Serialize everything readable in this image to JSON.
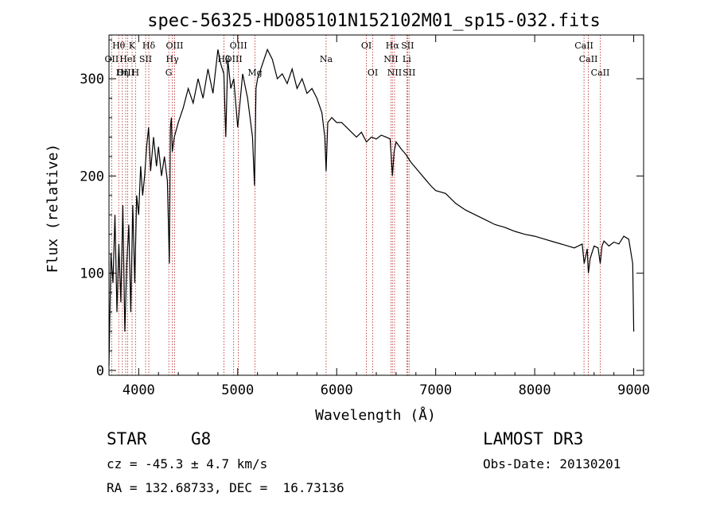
{
  "chart_data": {
    "type": "line",
    "title": "spec-56325-HD085101N152102M01_sp15-032.fits",
    "xlabel": "Wavelength (Å)",
    "ylabel": "Flux (relative)",
    "xlim": [
      3700,
      9100
    ],
    "ylim": [
      -5,
      345
    ],
    "xticks": [
      4000,
      5000,
      6000,
      7000,
      8000,
      9000
    ],
    "yticks": [
      0,
      100,
      200,
      300
    ],
    "grid": false,
    "series": [
      {
        "name": "spectrum",
        "x": [
          3700,
          3720,
          3740,
          3760,
          3780,
          3800,
          3820,
          3840,
          3860,
          3880,
          3900,
          3920,
          3940,
          3960,
          3980,
          4000,
          4020,
          4040,
          4060,
          4080,
          4100,
          4120,
          4150,
          4180,
          4200,
          4230,
          4260,
          4290,
          4310,
          4320,
          4330,
          4340,
          4360,
          4400,
          4450,
          4500,
          4550,
          4600,
          4650,
          4700,
          4750,
          4800,
          4830,
          4860,
          4880,
          4900,
          4930,
          4960,
          5000,
          5050,
          5100,
          5150,
          5170,
          5185,
          5200,
          5250,
          5300,
          5350,
          5400,
          5450,
          5500,
          5550,
          5600,
          5650,
          5700,
          5750,
          5800,
          5850,
          5880,
          5893,
          5910,
          5950,
          6000,
          6050,
          6100,
          6150,
          6200,
          6250,
          6300,
          6350,
          6400,
          6450,
          6500,
          6540,
          6563,
          6580,
          6600,
          6650,
          6700,
          6750,
          6800,
          6850,
          6900,
          6950,
          7000,
          7100,
          7200,
          7300,
          7400,
          7500,
          7600,
          7700,
          7800,
          7900,
          8000,
          8100,
          8200,
          8300,
          8400,
          8480,
          8500,
          8530,
          8542,
          8560,
          8600,
          8640,
          8662,
          8680,
          8700,
          8750,
          8800,
          8850,
          8900,
          8950,
          8990,
          9000
        ],
        "values": [
          5,
          120,
          90,
          160,
          60,
          130,
          70,
          170,
          40,
          110,
          150,
          60,
          170,
          90,
          180,
          160,
          210,
          180,
          200,
          230,
          250,
          205,
          240,
          210,
          230,
          200,
          220,
          195,
          110,
          250,
          260,
          225,
          240,
          255,
          270,
          290,
          275,
          300,
          280,
          310,
          285,
          330,
          315,
          305,
          240,
          320,
          290,
          300,
          250,
          305,
          280,
          240,
          190,
          290,
          300,
          315,
          330,
          320,
          300,
          305,
          295,
          310,
          290,
          300,
          285,
          290,
          280,
          265,
          240,
          205,
          255,
          260,
          255,
          255,
          250,
          245,
          240,
          245,
          235,
          240,
          238,
          242,
          240,
          238,
          200,
          225,
          235,
          228,
          222,
          214,
          208,
          202,
          196,
          190,
          185,
          182,
          172,
          165,
          160,
          155,
          150,
          147,
          143,
          140,
          138,
          135,
          132,
          129,
          126,
          130,
          110,
          125,
          100,
          115,
          128,
          126,
          110,
          128,
          133,
          128,
          132,
          130,
          138,
          135,
          110,
          40
        ]
      }
    ],
    "lines": [
      {
        "label": "Hθ",
        "x": 3798,
        "row": 1
      },
      {
        "label": "K",
        "x": 3933,
        "row": 1
      },
      {
        "label": "Hδ",
        "x": 4102,
        "row": 1
      },
      {
        "label": "OIII",
        "x": 4363,
        "row": 1
      },
      {
        "label": "OIII",
        "x": 5007,
        "row": 1
      },
      {
        "label": "OI",
        "x": 6300,
        "row": 1
      },
      {
        "label": "Hα",
        "x": 6563,
        "row": 1
      },
      {
        "label": "SII",
        "x": 6716,
        "row": 1
      },
      {
        "label": "CaII",
        "x": 8498,
        "row": 1
      },
      {
        "label": "OII",
        "x": 3727,
        "row": 2
      },
      {
        "label": "HeI",
        "x": 3889,
        "row": 2
      },
      {
        "label": "SII",
        "x": 4070,
        "row": 2
      },
      {
        "label": "Hγ",
        "x": 4340,
        "row": 2
      },
      {
        "label": "OIII",
        "x": 4959,
        "row": 2
      },
      {
        "label": "Hβ",
        "x": 4861,
        "row": 2
      },
      {
        "label": "Na",
        "x": 5893,
        "row": 2
      },
      {
        "label": "NII",
        "x": 6548,
        "row": 2
      },
      {
        "label": "Li",
        "x": 6708,
        "row": 2
      },
      {
        "label": "CaII",
        "x": 8542,
        "row": 2
      },
      {
        "label": "OIII",
        "x": 3869,
        "row": 3
      },
      {
        "label": "Hη",
        "x": 3835,
        "row": 3
      },
      {
        "label": "H",
        "x": 3968,
        "row": 3
      },
      {
        "label": "G",
        "x": 4304,
        "row": 3
      },
      {
        "label": "Mg",
        "x": 5175,
        "row": 3
      },
      {
        "label": "OI",
        "x": 6364,
        "row": 3
      },
      {
        "label": "NII",
        "x": 6584,
        "row": 3
      },
      {
        "label": "SII",
        "x": 6731,
        "row": 3
      },
      {
        "label": "CaII",
        "x": 8662,
        "row": 3
      }
    ]
  },
  "info": {
    "object_class": "STAR",
    "subclass": "G8",
    "survey": "LAMOST DR3",
    "redshift_text": "cz = -45.3 ± 4.7 km/s",
    "obs_date_text": "Obs-Date: 20130201",
    "coords_text": "RA = 132.68733, DEC =  16.73136"
  }
}
